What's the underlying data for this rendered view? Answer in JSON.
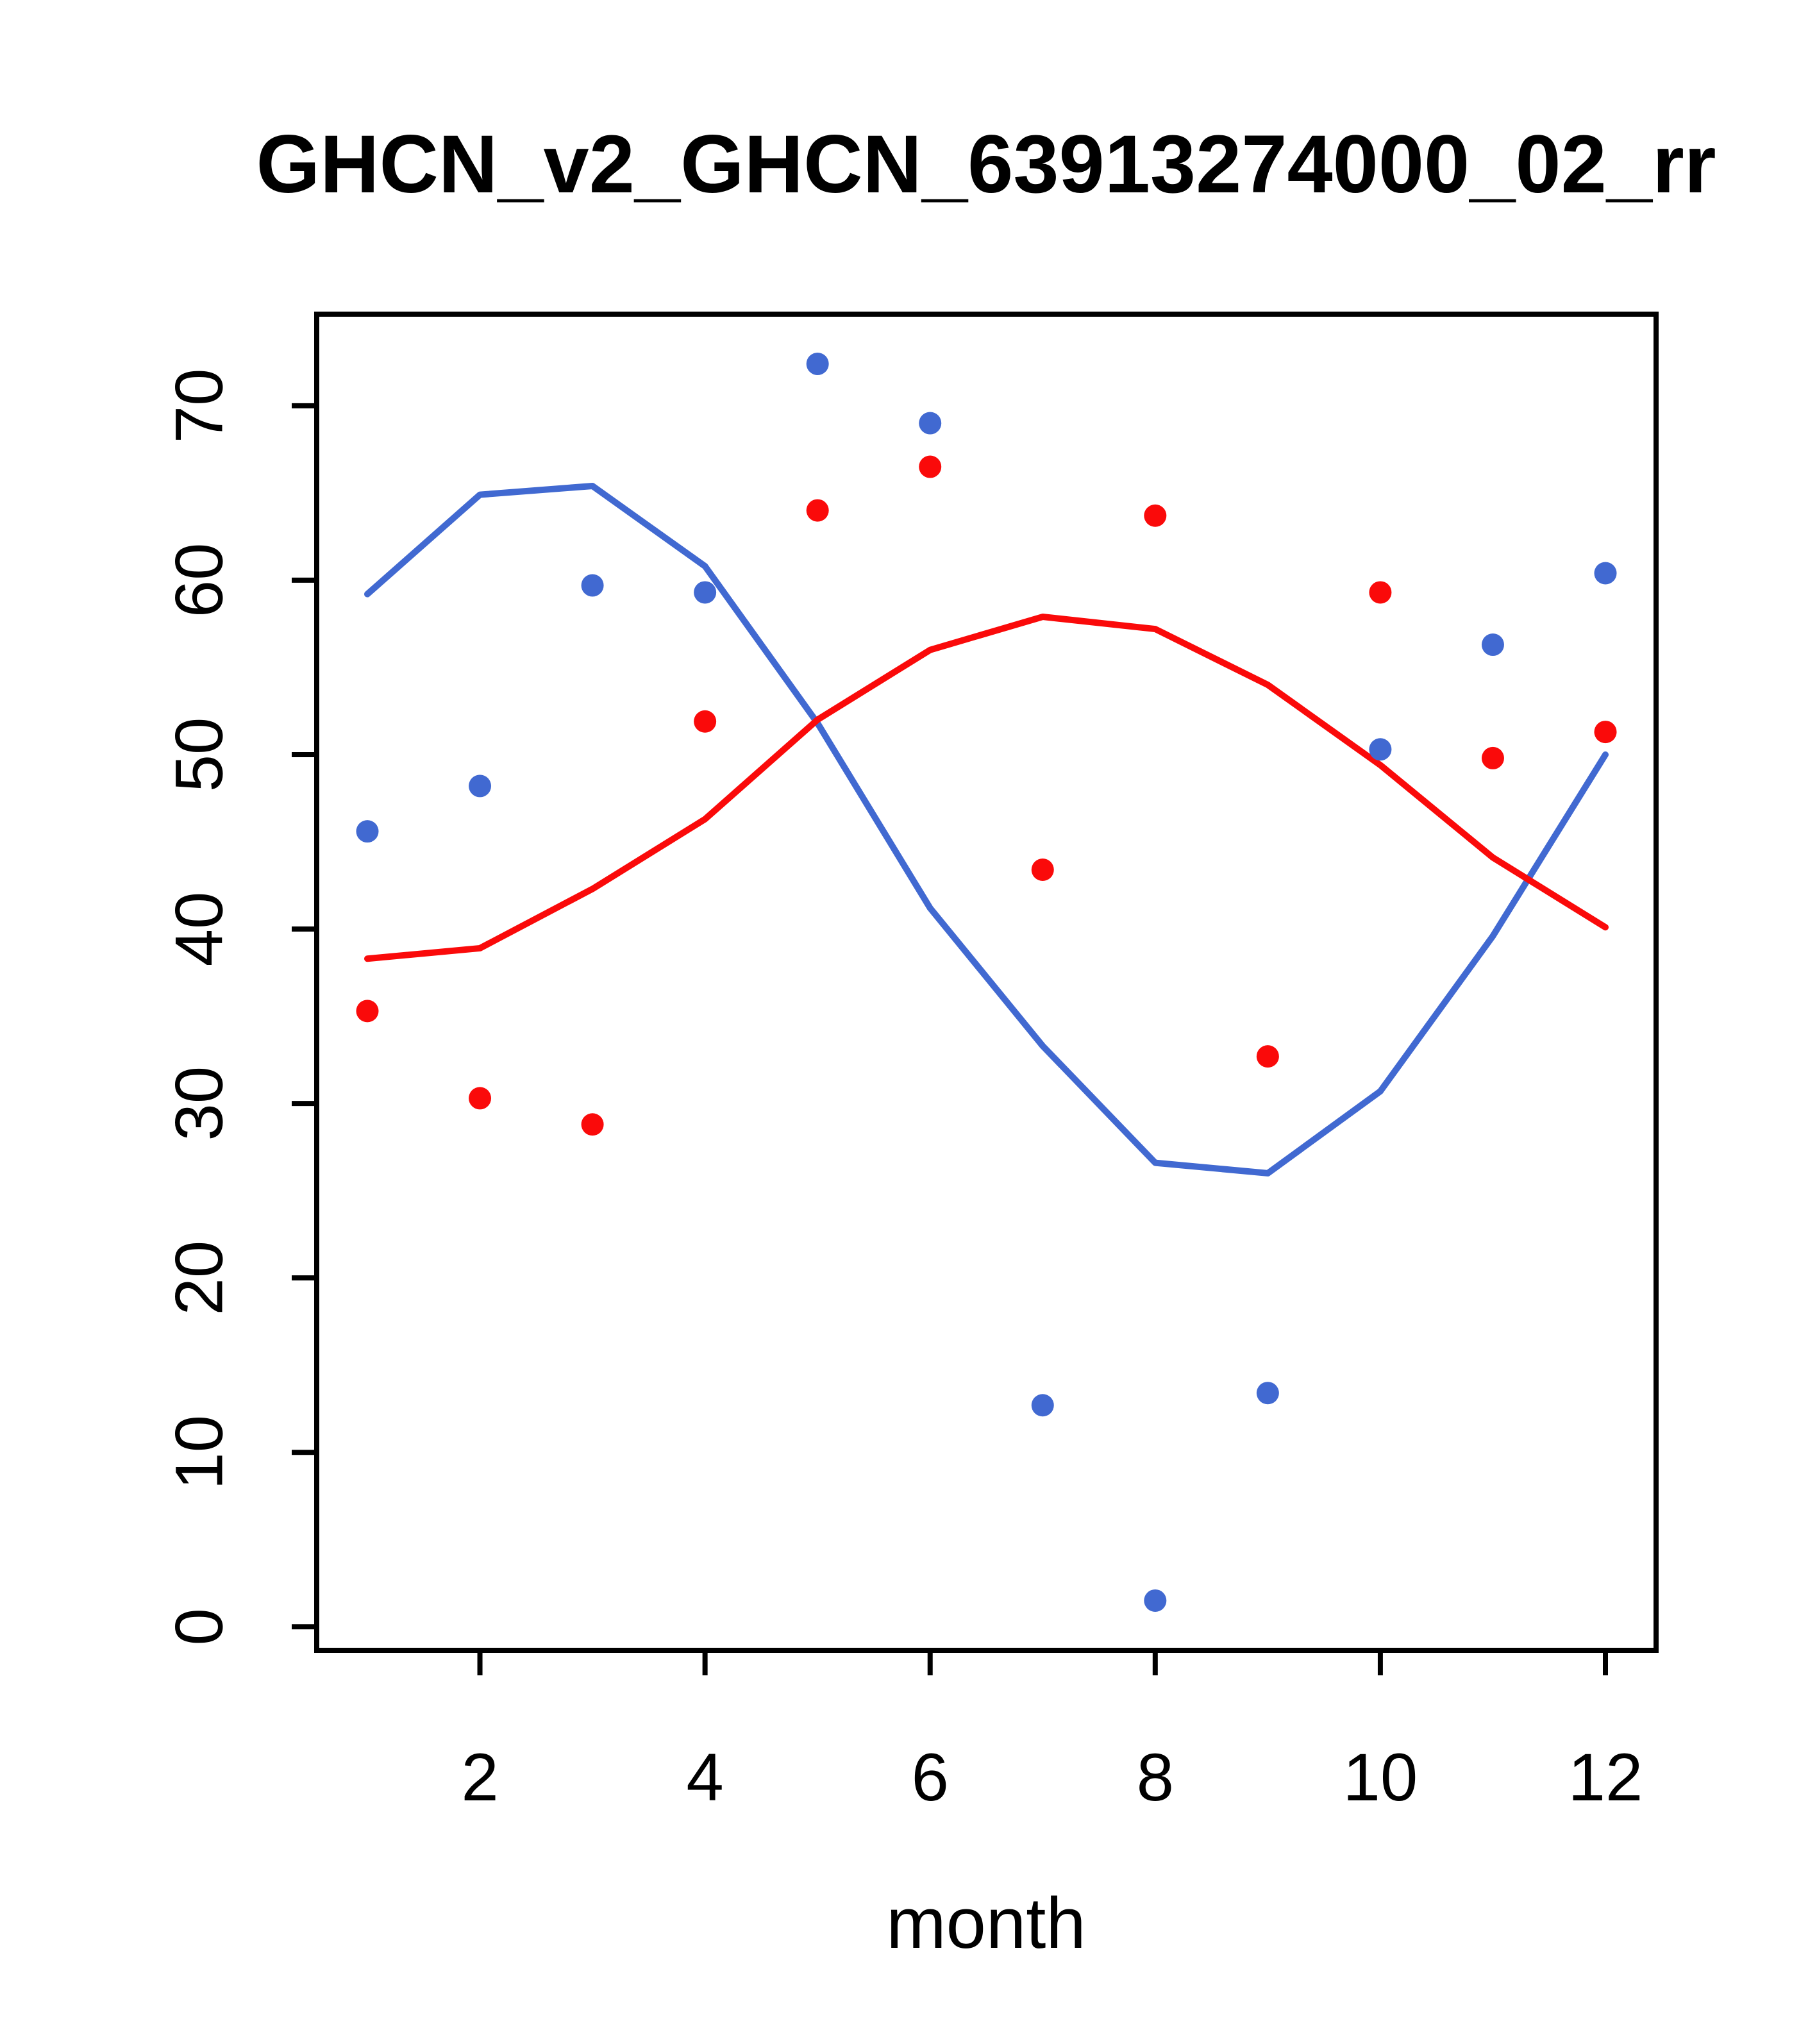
{
  "window": {
    "background": "#ffffff"
  },
  "chart_data": {
    "type": "scatter",
    "title": "GHCN_v2_GHCN_63913274000_02_rr",
    "xlabel": "month",
    "ylabel": "",
    "grid": false,
    "legend": null,
    "x_ticks": [
      2,
      4,
      6,
      8,
      10,
      12
    ],
    "y_ticks": [
      0,
      10,
      20,
      30,
      40,
      50,
      60,
      70
    ],
    "xlim": [
      0.55,
      12.45
    ],
    "ylim": [
      -1.35,
      75.25
    ],
    "x": [
      1,
      2,
      3,
      4,
      5,
      6,
      7,
      8,
      9,
      10,
      11,
      12
    ],
    "series": [
      {
        "name": "blue-points",
        "mark": "point",
        "color": "#4169d1",
        "values": [
          45.6,
          48.2,
          59.7,
          59.3,
          72.4,
          69.0,
          12.7,
          1.5,
          13.4,
          50.3,
          56.3,
          60.4
        ]
      },
      {
        "name": "red-points",
        "mark": "point",
        "color": "#fa0a0a",
        "values": [
          35.3,
          30.3,
          28.8,
          51.9,
          64.0,
          66.5,
          43.4,
          63.7,
          32.7,
          59.3,
          49.8,
          51.3
        ]
      },
      {
        "name": "blue-smooth-line",
        "mark": "line",
        "color": "#4169d1",
        "values": [
          59.2,
          64.9,
          65.4,
          60.8,
          51.8,
          41.2,
          33.3,
          26.6,
          26.0,
          30.7,
          39.6,
          50.0
        ]
      },
      {
        "name": "red-smooth-line",
        "mark": "line",
        "color": "#fa0a0a",
        "values": [
          38.3,
          38.9,
          42.3,
          46.3,
          52.0,
          56.0,
          57.9,
          57.2,
          54.0,
          49.4,
          44.1,
          40.1
        ]
      }
    ],
    "colors": {
      "blue": "#4169d1",
      "red": "#fa0a0a",
      "axis": "#000000",
      "background": "#ffffff"
    }
  }
}
